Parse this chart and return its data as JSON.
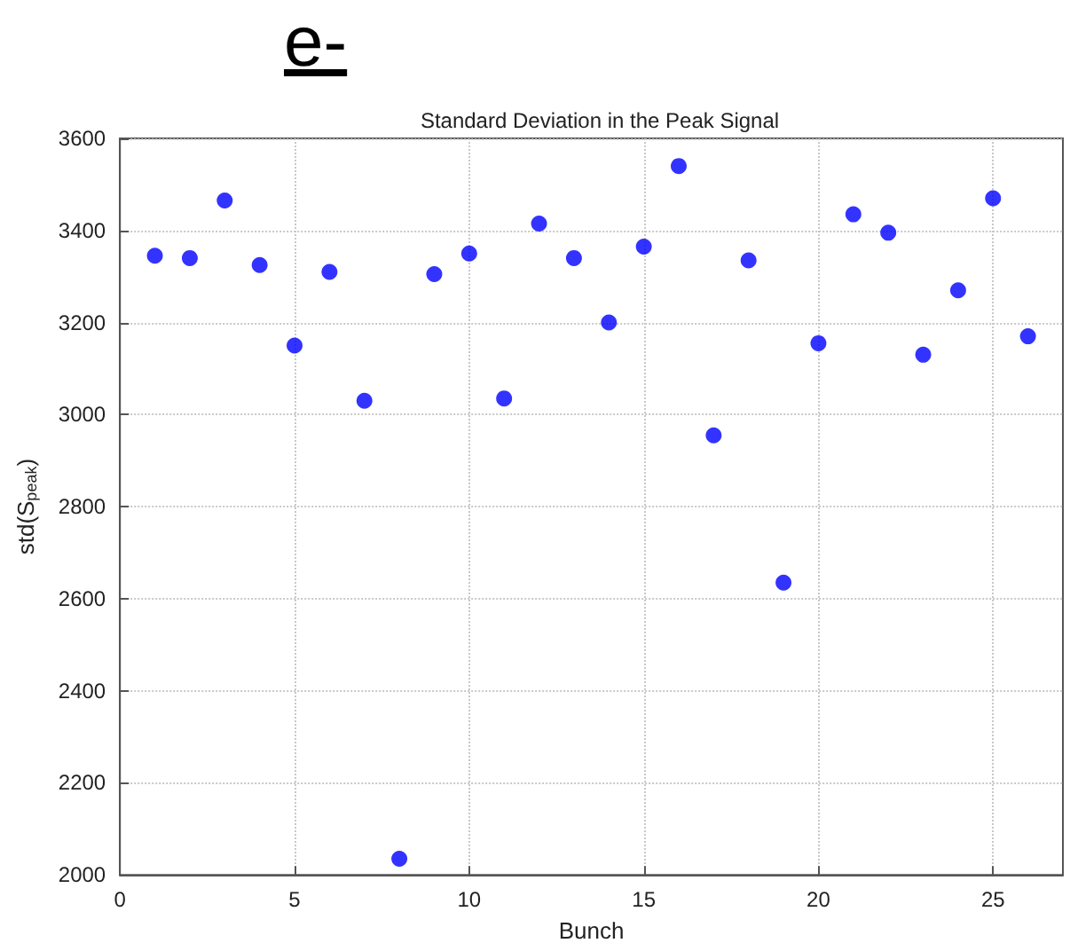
{
  "chart_data": {
    "type": "scatter",
    "title": "e-",
    "subtitle": "Standard Deviation in the Peak Signal",
    "xlabel": "Bunch",
    "ylabel": "std(S$_{peak}$)",
    "x": [
      1,
      2,
      3,
      4,
      5,
      6,
      7,
      8,
      9,
      10,
      11,
      12,
      13,
      14,
      15,
      16,
      17,
      18,
      19,
      20,
      21,
      22,
      23,
      24,
      25,
      26
    ],
    "series": [
      {
        "color": "#0000ff",
        "values": [
          3345,
          3340,
          3465,
          3325,
          3150,
          3310,
          3030,
          2035,
          3305,
          3350,
          3035,
          3415,
          3340,
          3200,
          3365,
          3540,
          2955,
          3335,
          2635,
          3155,
          3435,
          3395,
          3130,
          3270,
          3470,
          3170
        ]
      }
    ],
    "xlim": [
      0,
      27
    ],
    "xticks": [
      0,
      5,
      10,
      15,
      20,
      25
    ],
    "ylim": [
      2000,
      3600
    ],
    "yticks": [
      2000,
      2200,
      2400,
      2600,
      2800,
      3000,
      3200,
      3400,
      3600
    ],
    "grid": true,
    "marker": "circle"
  }
}
